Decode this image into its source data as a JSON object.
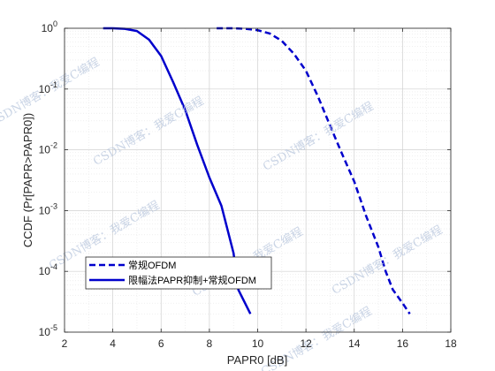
{
  "chart_data": {
    "type": "line",
    "xlabel": "PAPR0 [dB]",
    "ylabel": "CCDF (Pr[PAPR>PAPR0])",
    "xlim": [
      2,
      18
    ],
    "ylim": [
      1e-05,
      1
    ],
    "yscale": "log",
    "xticks": [
      2,
      4,
      6,
      8,
      10,
      12,
      14,
      16,
      18
    ],
    "yticks": [
      {
        "value": 1,
        "exp": "0"
      },
      {
        "value": 0.1,
        "exp": "-1"
      },
      {
        "value": 0.01,
        "exp": "-2"
      },
      {
        "value": 0.001,
        "exp": "-3"
      },
      {
        "value": 0.0001,
        "exp": "-4"
      },
      {
        "value": 1e-05,
        "exp": "-5"
      }
    ],
    "tick_base": "10",
    "grid": true,
    "minor_grid": true,
    "legend_placement": "lower-left",
    "series": [
      {
        "name": "常规OFDM",
        "color": "#0000cc",
        "style": "dashed",
        "points": [
          [
            8.3,
            1
          ],
          [
            9.0,
            1
          ],
          [
            9.5,
            0.98
          ],
          [
            10.0,
            0.93
          ],
          [
            10.5,
            0.82
          ],
          [
            11.0,
            0.62
          ],
          [
            11.5,
            0.38
          ],
          [
            12.0,
            0.2
          ],
          [
            12.5,
            0.075
          ],
          [
            13.0,
            0.025
          ],
          [
            13.5,
            0.0085
          ],
          [
            14.0,
            0.003
          ],
          [
            14.5,
            0.0008
          ],
          [
            15.0,
            0.00025
          ],
          [
            15.3,
            0.0001
          ],
          [
            15.6,
            5e-05
          ],
          [
            16.0,
            3e-05
          ],
          [
            16.3,
            2e-05
          ]
        ]
      },
      {
        "name": "限幅法PAPR抑制+常规OFDM",
        "color": "#0000cc",
        "style": "solid",
        "points": [
          [
            3.6,
            1
          ],
          [
            4.0,
            1
          ],
          [
            4.5,
            0.98
          ],
          [
            5.0,
            0.9
          ],
          [
            5.5,
            0.65
          ],
          [
            6.0,
            0.35
          ],
          [
            6.5,
            0.13
          ],
          [
            7.0,
            0.045
          ],
          [
            7.5,
            0.012
          ],
          [
            8.0,
            0.0035
          ],
          [
            8.5,
            0.0012
          ],
          [
            9.0,
            0.0002
          ],
          [
            9.2,
            5e-05
          ],
          [
            9.7,
            2e-05
          ]
        ]
      }
    ]
  },
  "watermarks": [
    "CSDN博客：我爱C编程",
    "CSDN博客：我爱C编程",
    "CSDN博客：我爱C编程",
    "CSDN博客：我爱C编程",
    "CSDN博客：我爱C编程",
    "CSDN博客：我爱C编程",
    "CSDN博客：我爱C编程"
  ]
}
